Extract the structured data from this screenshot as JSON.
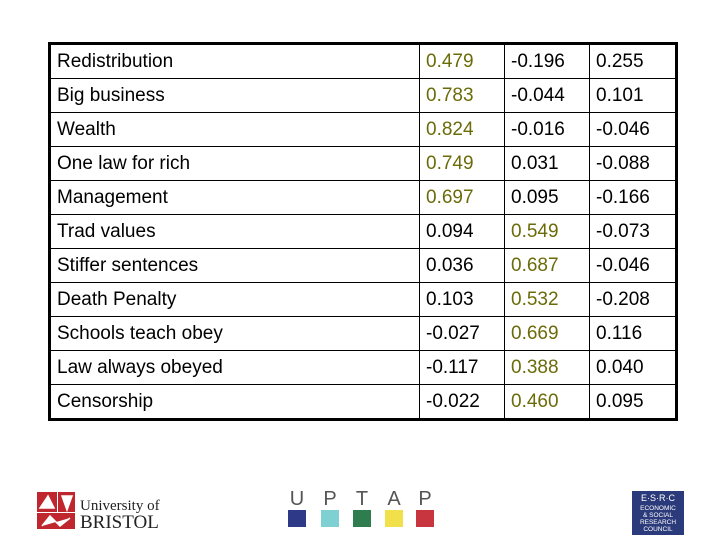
{
  "table": {
    "rows": [
      [
        "Redistribution",
        "0.479",
        "-0.196",
        "0.255"
      ],
      [
        "Big business",
        "0.783",
        "-0.044",
        "0.101"
      ],
      [
        "Wealth",
        "0.824",
        "-0.016",
        "-0.046"
      ],
      [
        "One law for rich",
        "0.749",
        "0.031",
        "-0.088"
      ],
      [
        "Management",
        "0.697",
        "0.095",
        "-0.166"
      ],
      [
        "Trad values",
        "0.094",
        "0.549",
        "-0.073"
      ],
      [
        "Stiffer sentences",
        "0.036",
        "0.687",
        "-0.046"
      ],
      [
        "Death Penalty",
        "0.103",
        "0.532",
        "-0.208"
      ],
      [
        "Schools teach obey",
        "-0.027",
        "0.669",
        "0.116"
      ],
      [
        "Law always obeyed",
        "-0.117",
        "0.388",
        "0.040"
      ],
      [
        "Censorship",
        "-0.022",
        "0.460",
        "0.095"
      ]
    ],
    "highlight": {
      "color": "#6b6b0a",
      "columns": [
        1,
        1,
        1,
        1,
        1,
        2,
        2,
        2,
        2,
        2,
        2
      ]
    }
  },
  "logos": {
    "bristol": {
      "line1": "University of",
      "line2": "BRISTOL"
    },
    "uptap": [
      "U",
      "P",
      "T",
      "A",
      "P"
    ],
    "esrc": {
      "acronym": "E·S·R·C",
      "line1": "ECONOMIC",
      "line2": "& SOCIAL",
      "line3": "RESEARCH",
      "line4": "COUNCIL"
    }
  }
}
